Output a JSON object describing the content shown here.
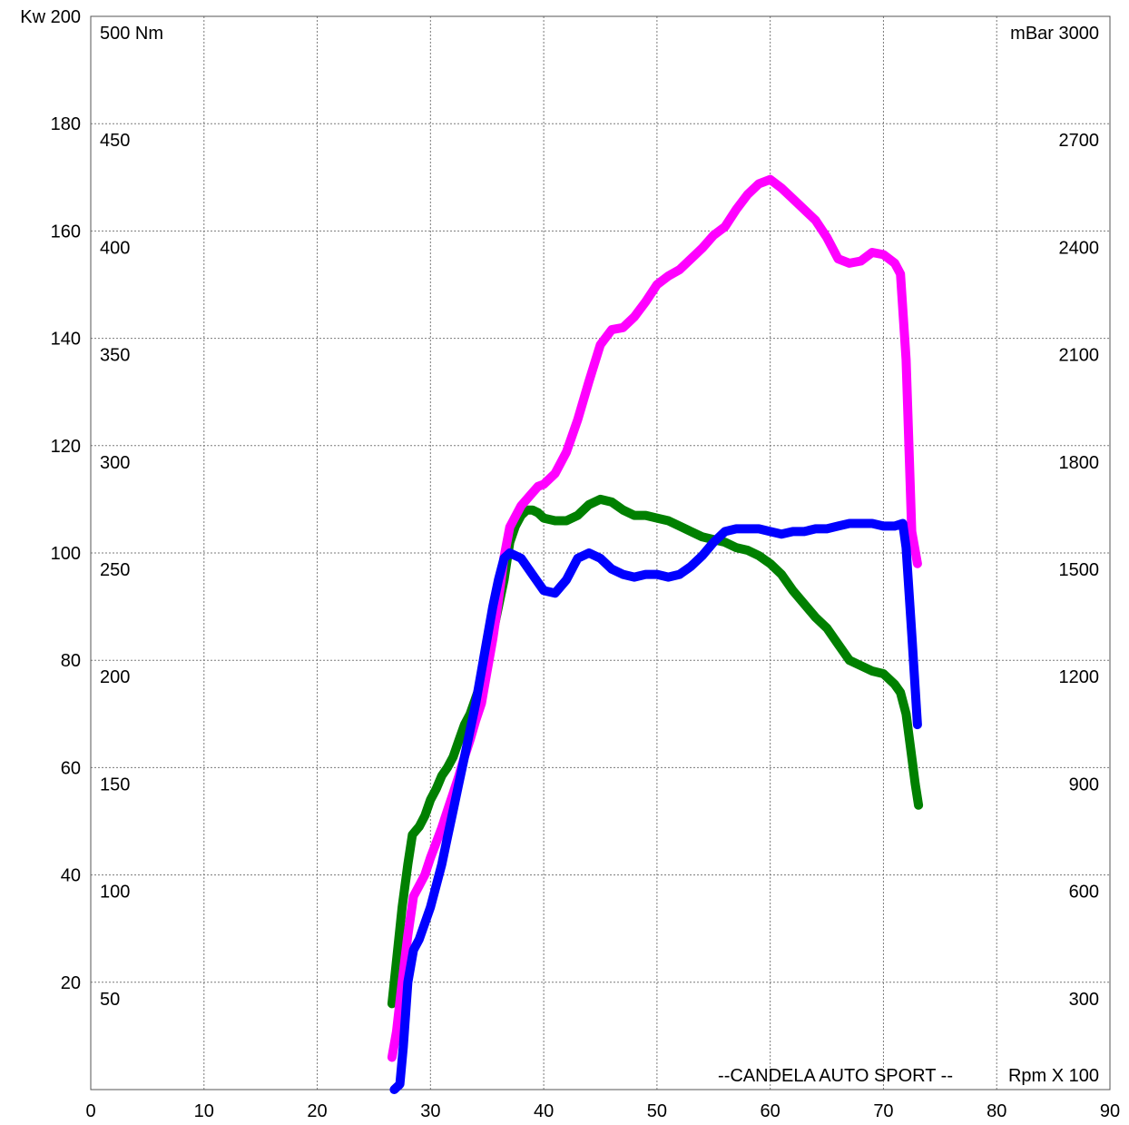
{
  "chart_data": {
    "type": "line",
    "title": "",
    "annotation": "--CANDELA AUTO SPORT --",
    "xlabel": "Rpm X 100",
    "x_ticks": [
      "0",
      "10",
      "20",
      "30",
      "40",
      "50",
      "60",
      "70",
      "80",
      "90"
    ],
    "xlim": [
      0,
      90
    ],
    "left_axis": {
      "label": "Kw",
      "ylim": [
        0,
        200
      ],
      "ticks": [
        {
          "value": 20,
          "label": "20"
        },
        {
          "value": 40,
          "label": "40"
        },
        {
          "value": 60,
          "label": "60"
        },
        {
          "value": 80,
          "label": "80"
        },
        {
          "value": 100,
          "label": "100"
        },
        {
          "value": 120,
          "label": "120"
        },
        {
          "value": 140,
          "label": "140"
        },
        {
          "value": 160,
          "label": "160"
        },
        {
          "value": 180,
          "label": "180"
        },
        {
          "value": 200,
          "label": "200"
        }
      ]
    },
    "inner_axis": {
      "label": "Nm",
      "ylim": [
        0,
        500
      ],
      "ticks": [
        {
          "value": 50,
          "label": "50"
        },
        {
          "value": 100,
          "label": "100"
        },
        {
          "value": 150,
          "label": "150"
        },
        {
          "value": 200,
          "label": "200"
        },
        {
          "value": 250,
          "label": "250"
        },
        {
          "value": 300,
          "label": "300"
        },
        {
          "value": 350,
          "label": "350"
        },
        {
          "value": 400,
          "label": "400"
        },
        {
          "value": 450,
          "label": "450"
        },
        {
          "value": 500,
          "label": "500"
        }
      ]
    },
    "right_axis": {
      "label": "mBar",
      "ylim": [
        0,
        3000
      ],
      "ticks": [
        {
          "value": 300,
          "label": "300"
        },
        {
          "value": 600,
          "label": "600"
        },
        {
          "value": 900,
          "label": "900"
        },
        {
          "value": 1200,
          "label": "1200"
        },
        {
          "value": 1500,
          "label": "1500"
        },
        {
          "value": 1800,
          "label": "1800"
        },
        {
          "value": 2100,
          "label": "2100"
        },
        {
          "value": 2400,
          "label": "2400"
        },
        {
          "value": 2700,
          "label": "2700"
        },
        {
          "value": 3000,
          "label": "3000"
        }
      ]
    },
    "grid": true,
    "series": [
      {
        "color": "#008000",
        "axis": "Kw",
        "points": [
          [
            26.6,
            16
          ],
          [
            27,
            24
          ],
          [
            27.5,
            34
          ],
          [
            28,
            42
          ],
          [
            28.4,
            47.5
          ],
          [
            29,
            49
          ],
          [
            29.5,
            51
          ],
          [
            30,
            54
          ],
          [
            30.5,
            56
          ],
          [
            31,
            58.5
          ],
          [
            31.5,
            60
          ],
          [
            32,
            62
          ],
          [
            32.5,
            65
          ],
          [
            33,
            68
          ],
          [
            33.5,
            70
          ],
          [
            34,
            73
          ],
          [
            34.5,
            76
          ],
          [
            35,
            80
          ],
          [
            35.5,
            85
          ],
          [
            36,
            90
          ],
          [
            36.5,
            95
          ],
          [
            37,
            102
          ],
          [
            37.5,
            105
          ],
          [
            38,
            107
          ],
          [
            38.5,
            108
          ],
          [
            39,
            108
          ],
          [
            39.5,
            107.5
          ],
          [
            40,
            106.5
          ],
          [
            41,
            106
          ],
          [
            42,
            106
          ],
          [
            43,
            107
          ],
          [
            44,
            109
          ],
          [
            45,
            110
          ],
          [
            46,
            109.5
          ],
          [
            47,
            108
          ],
          [
            48,
            107
          ],
          [
            49,
            107
          ],
          [
            50,
            106.5
          ],
          [
            51,
            106
          ],
          [
            52,
            105
          ],
          [
            53,
            104
          ],
          [
            54,
            103
          ],
          [
            55,
            102.5
          ],
          [
            56,
            102
          ],
          [
            57,
            101
          ],
          [
            58,
            100.5
          ],
          [
            59,
            99.5
          ],
          [
            60,
            98
          ],
          [
            61,
            96
          ],
          [
            62,
            93
          ],
          [
            63,
            90.5
          ],
          [
            64,
            88
          ],
          [
            65,
            86
          ],
          [
            66,
            83
          ],
          [
            67,
            80
          ],
          [
            68,
            79
          ],
          [
            69,
            78
          ],
          [
            70,
            77.5
          ],
          [
            71,
            75.5
          ],
          [
            71.5,
            74
          ],
          [
            72,
            70
          ],
          [
            72.5,
            62
          ],
          [
            72.8,
            57
          ],
          [
            73.1,
            53
          ]
        ]
      },
      {
        "color": "#ff00ff",
        "axis": "Nm",
        "points": [
          [
            26.6,
            15
          ],
          [
            27,
            27
          ],
          [
            27.5,
            50
          ],
          [
            28,
            72
          ],
          [
            28.5,
            90
          ],
          [
            29,
            95
          ],
          [
            29.5,
            100
          ],
          [
            30,
            108
          ],
          [
            30.5,
            115
          ],
          [
            31,
            122
          ],
          [
            31.5,
            130
          ],
          [
            32,
            138
          ],
          [
            32.5,
            146
          ],
          [
            33,
            155
          ],
          [
            33.5,
            163
          ],
          [
            34,
            172
          ],
          [
            34.5,
            180
          ],
          [
            35,
            195
          ],
          [
            35.5,
            210
          ],
          [
            36,
            228
          ],
          [
            36.5,
            248
          ],
          [
            37,
            262
          ],
          [
            37.5,
            267
          ],
          [
            38,
            272
          ],
          [
            38.5,
            275
          ],
          [
            39,
            278
          ],
          [
            39.5,
            281
          ],
          [
            40,
            282
          ],
          [
            41,
            287
          ],
          [
            42,
            297
          ],
          [
            43,
            312
          ],
          [
            44,
            330
          ],
          [
            45,
            347
          ],
          [
            46,
            354
          ],
          [
            47,
            355
          ],
          [
            48,
            360
          ],
          [
            49,
            367
          ],
          [
            50,
            375
          ],
          [
            51,
            379
          ],
          [
            52,
            382
          ],
          [
            53,
            387
          ],
          [
            54,
            392
          ],
          [
            55,
            398
          ],
          [
            56,
            402
          ],
          [
            57,
            410
          ],
          [
            58,
            417
          ],
          [
            59,
            422
          ],
          [
            60,
            424
          ],
          [
            61,
            420
          ],
          [
            62,
            415
          ],
          [
            63,
            410
          ],
          [
            64,
            405
          ],
          [
            65,
            397
          ],
          [
            66,
            387
          ],
          [
            67,
            385
          ],
          [
            68,
            386
          ],
          [
            69,
            390
          ],
          [
            70,
            389
          ],
          [
            71,
            385
          ],
          [
            71.5,
            380
          ],
          [
            72,
            340
          ],
          [
            72.5,
            260
          ],
          [
            73,
            245
          ]
        ]
      },
      {
        "color": "#0000ff",
        "axis": "Kw",
        "points": [
          [
            26.8,
            0
          ],
          [
            27.3,
            1
          ],
          [
            27.6,
            8
          ],
          [
            28,
            20
          ],
          [
            28.5,
            26
          ],
          [
            29,
            28
          ],
          [
            29.5,
            31
          ],
          [
            30,
            34
          ],
          [
            30.5,
            38
          ],
          [
            31,
            42
          ],
          [
            31.5,
            47
          ],
          [
            32,
            52
          ],
          [
            32.5,
            57
          ],
          [
            33,
            62
          ],
          [
            33.5,
            67
          ],
          [
            34,
            72
          ],
          [
            34.5,
            78
          ],
          [
            35,
            84
          ],
          [
            35.5,
            90
          ],
          [
            36,
            95
          ],
          [
            36.5,
            99
          ],
          [
            37,
            100
          ],
          [
            38,
            99
          ],
          [
            39,
            96
          ],
          [
            40,
            93
          ],
          [
            41,
            92.5
          ],
          [
            42,
            95
          ],
          [
            43,
            99
          ],
          [
            44,
            100
          ],
          [
            45,
            99
          ],
          [
            46,
            97
          ],
          [
            47,
            96
          ],
          [
            48,
            95.5
          ],
          [
            49,
            96
          ],
          [
            50,
            96
          ],
          [
            51,
            95.5
          ],
          [
            52,
            96
          ],
          [
            53,
            97.5
          ],
          [
            54,
            99.5
          ],
          [
            55,
            102
          ],
          [
            56,
            104
          ],
          [
            57,
            104.5
          ],
          [
            58,
            104.5
          ],
          [
            59,
            104.5
          ],
          [
            60,
            104
          ],
          [
            61,
            103.5
          ],
          [
            62,
            104
          ],
          [
            63,
            104
          ],
          [
            64,
            104.5
          ],
          [
            65,
            104.5
          ],
          [
            66,
            105
          ],
          [
            67,
            105.5
          ],
          [
            68,
            105.5
          ],
          [
            69,
            105.5
          ],
          [
            70,
            105
          ],
          [
            71,
            105
          ],
          [
            71.7,
            105.5
          ],
          [
            72,
            101
          ],
          [
            72.5,
            85
          ],
          [
            73,
            68
          ]
        ]
      }
    ]
  }
}
